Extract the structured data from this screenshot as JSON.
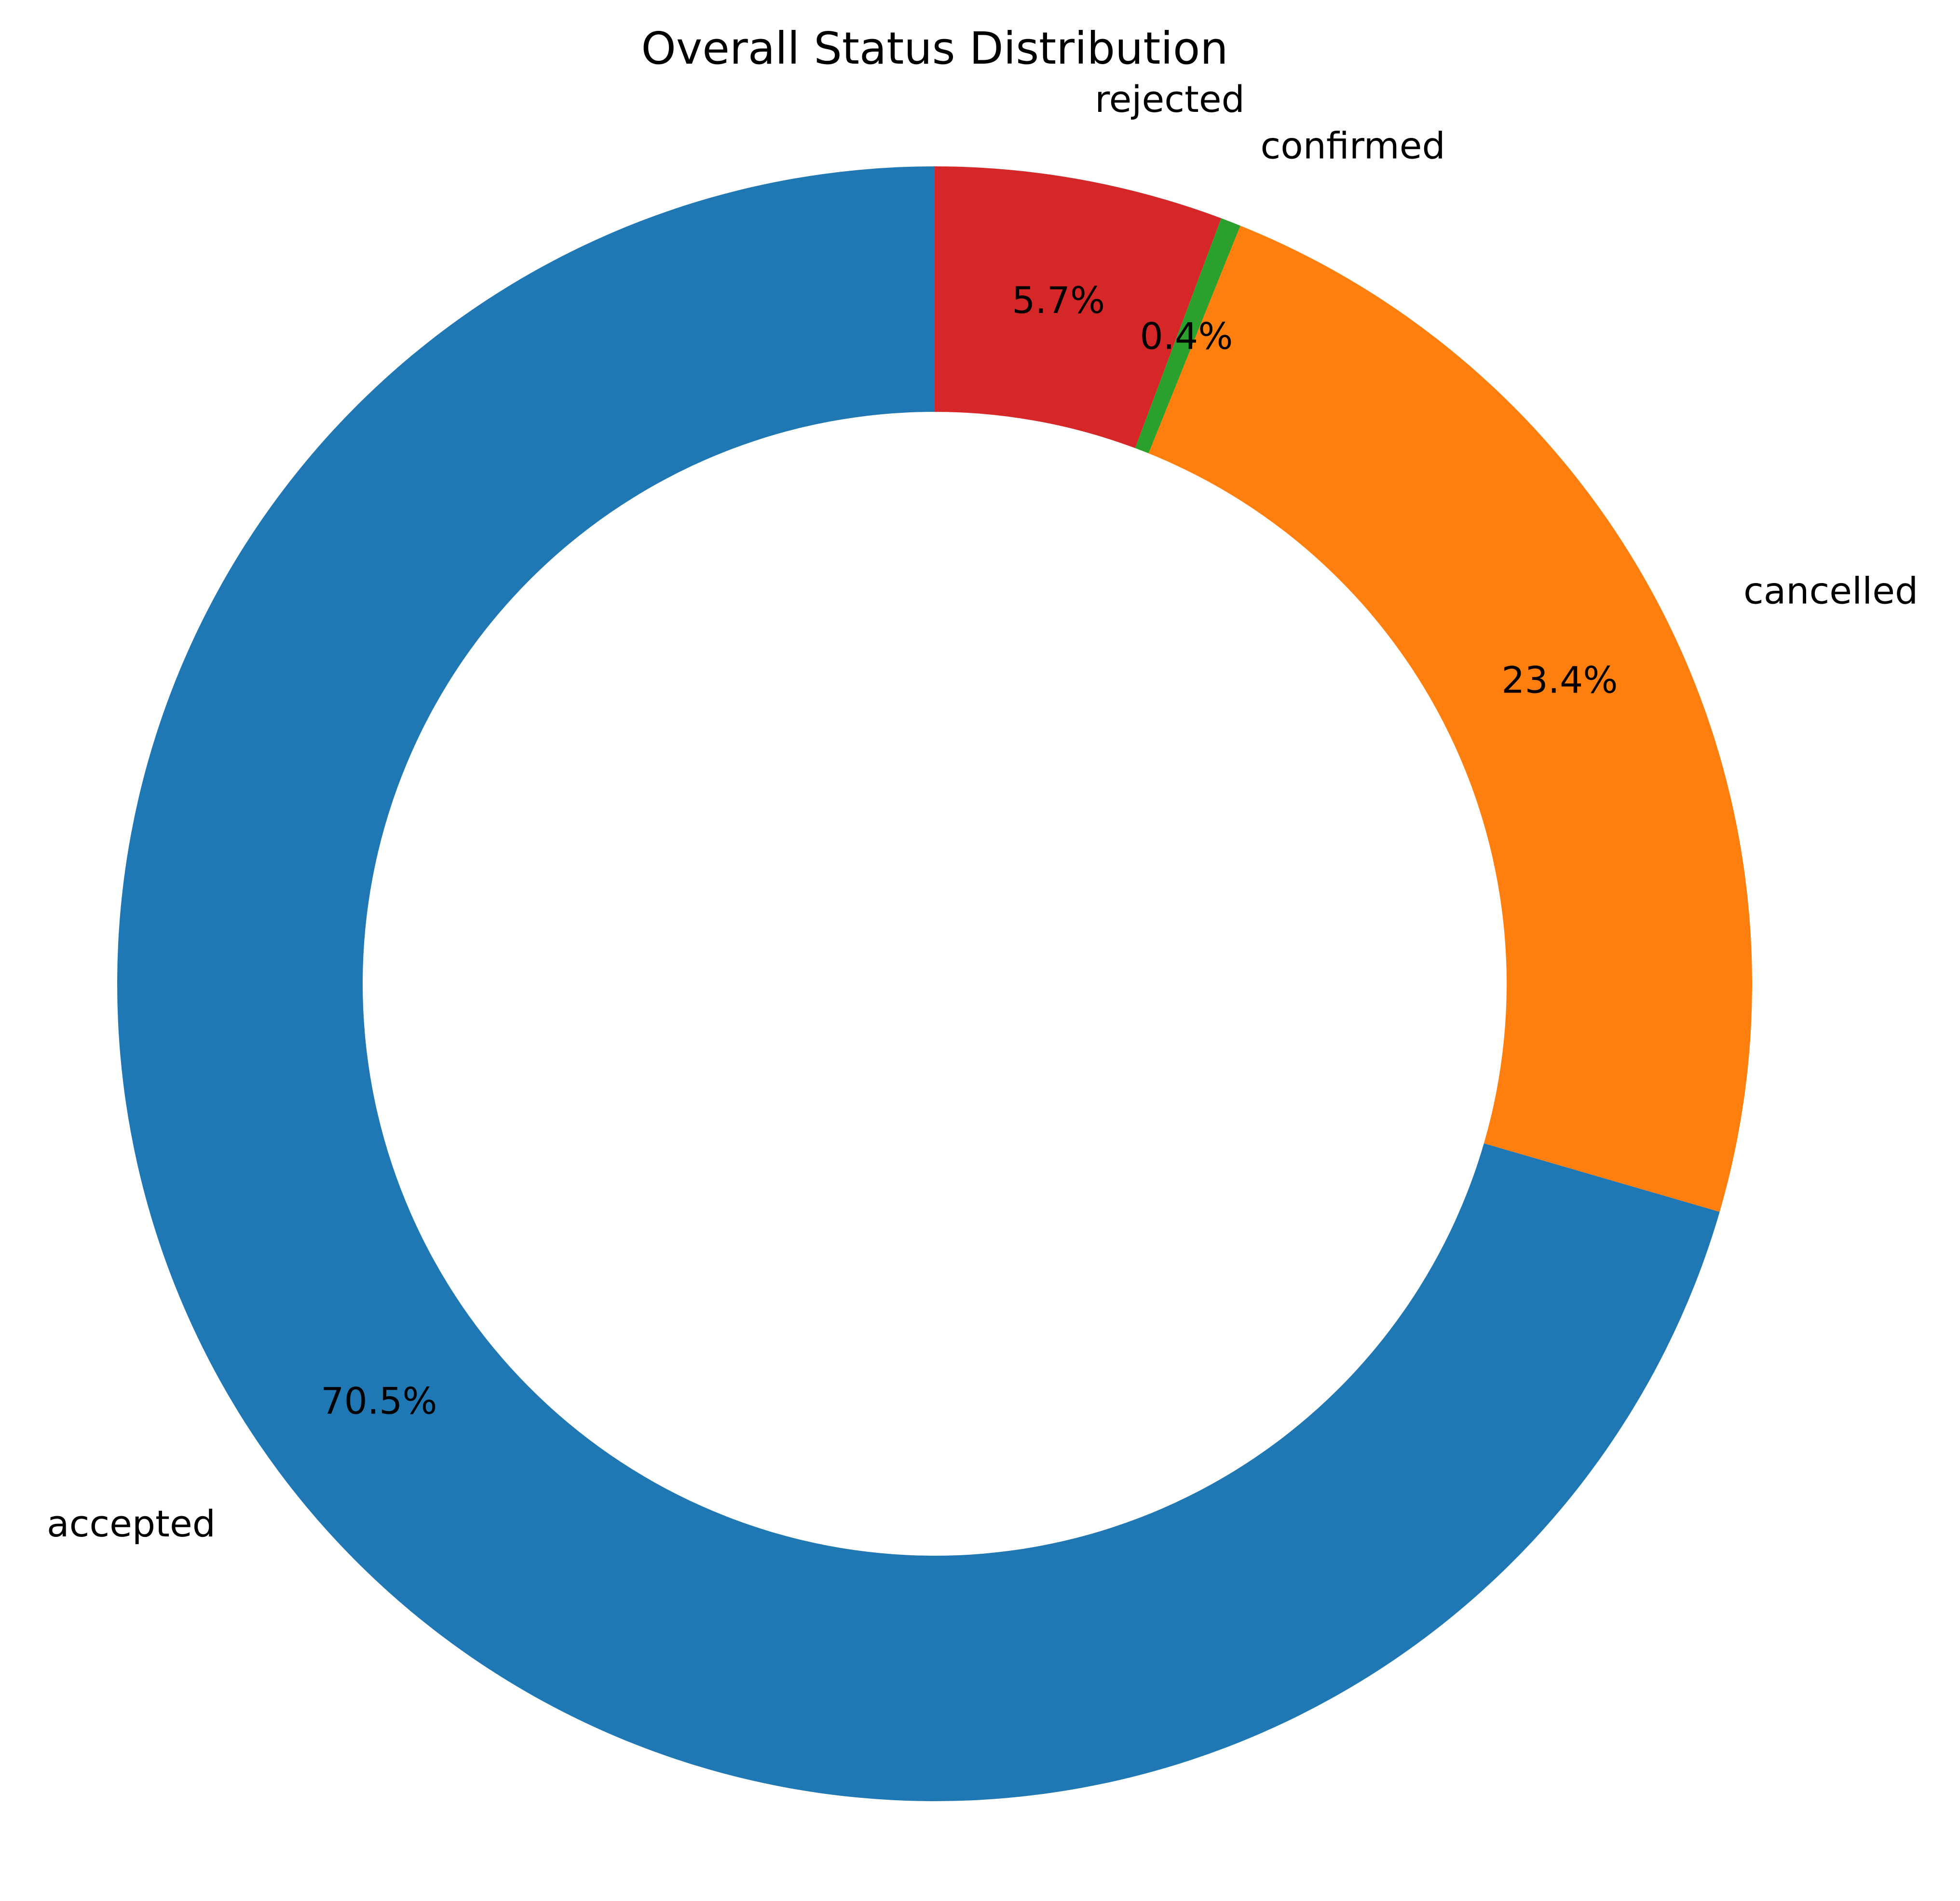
{
  "chart_data": {
    "type": "pie",
    "style": "donut",
    "title": "Overall Status Distribution",
    "categories": [
      "accepted",
      "cancelled",
      "confirmed",
      "rejected"
    ],
    "values": [
      70.5,
      23.4,
      0.4,
      5.7
    ],
    "percent_labels": [
      "70.5%",
      "23.4%",
      "0.4%",
      "5.7%"
    ],
    "colors": [
      "#1f77b4",
      "#ff7f0e",
      "#2ca02c",
      "#d62728"
    ],
    "start_angle_deg": 90,
    "direction": "counterclockwise",
    "legend": "none",
    "grid": false
  }
}
